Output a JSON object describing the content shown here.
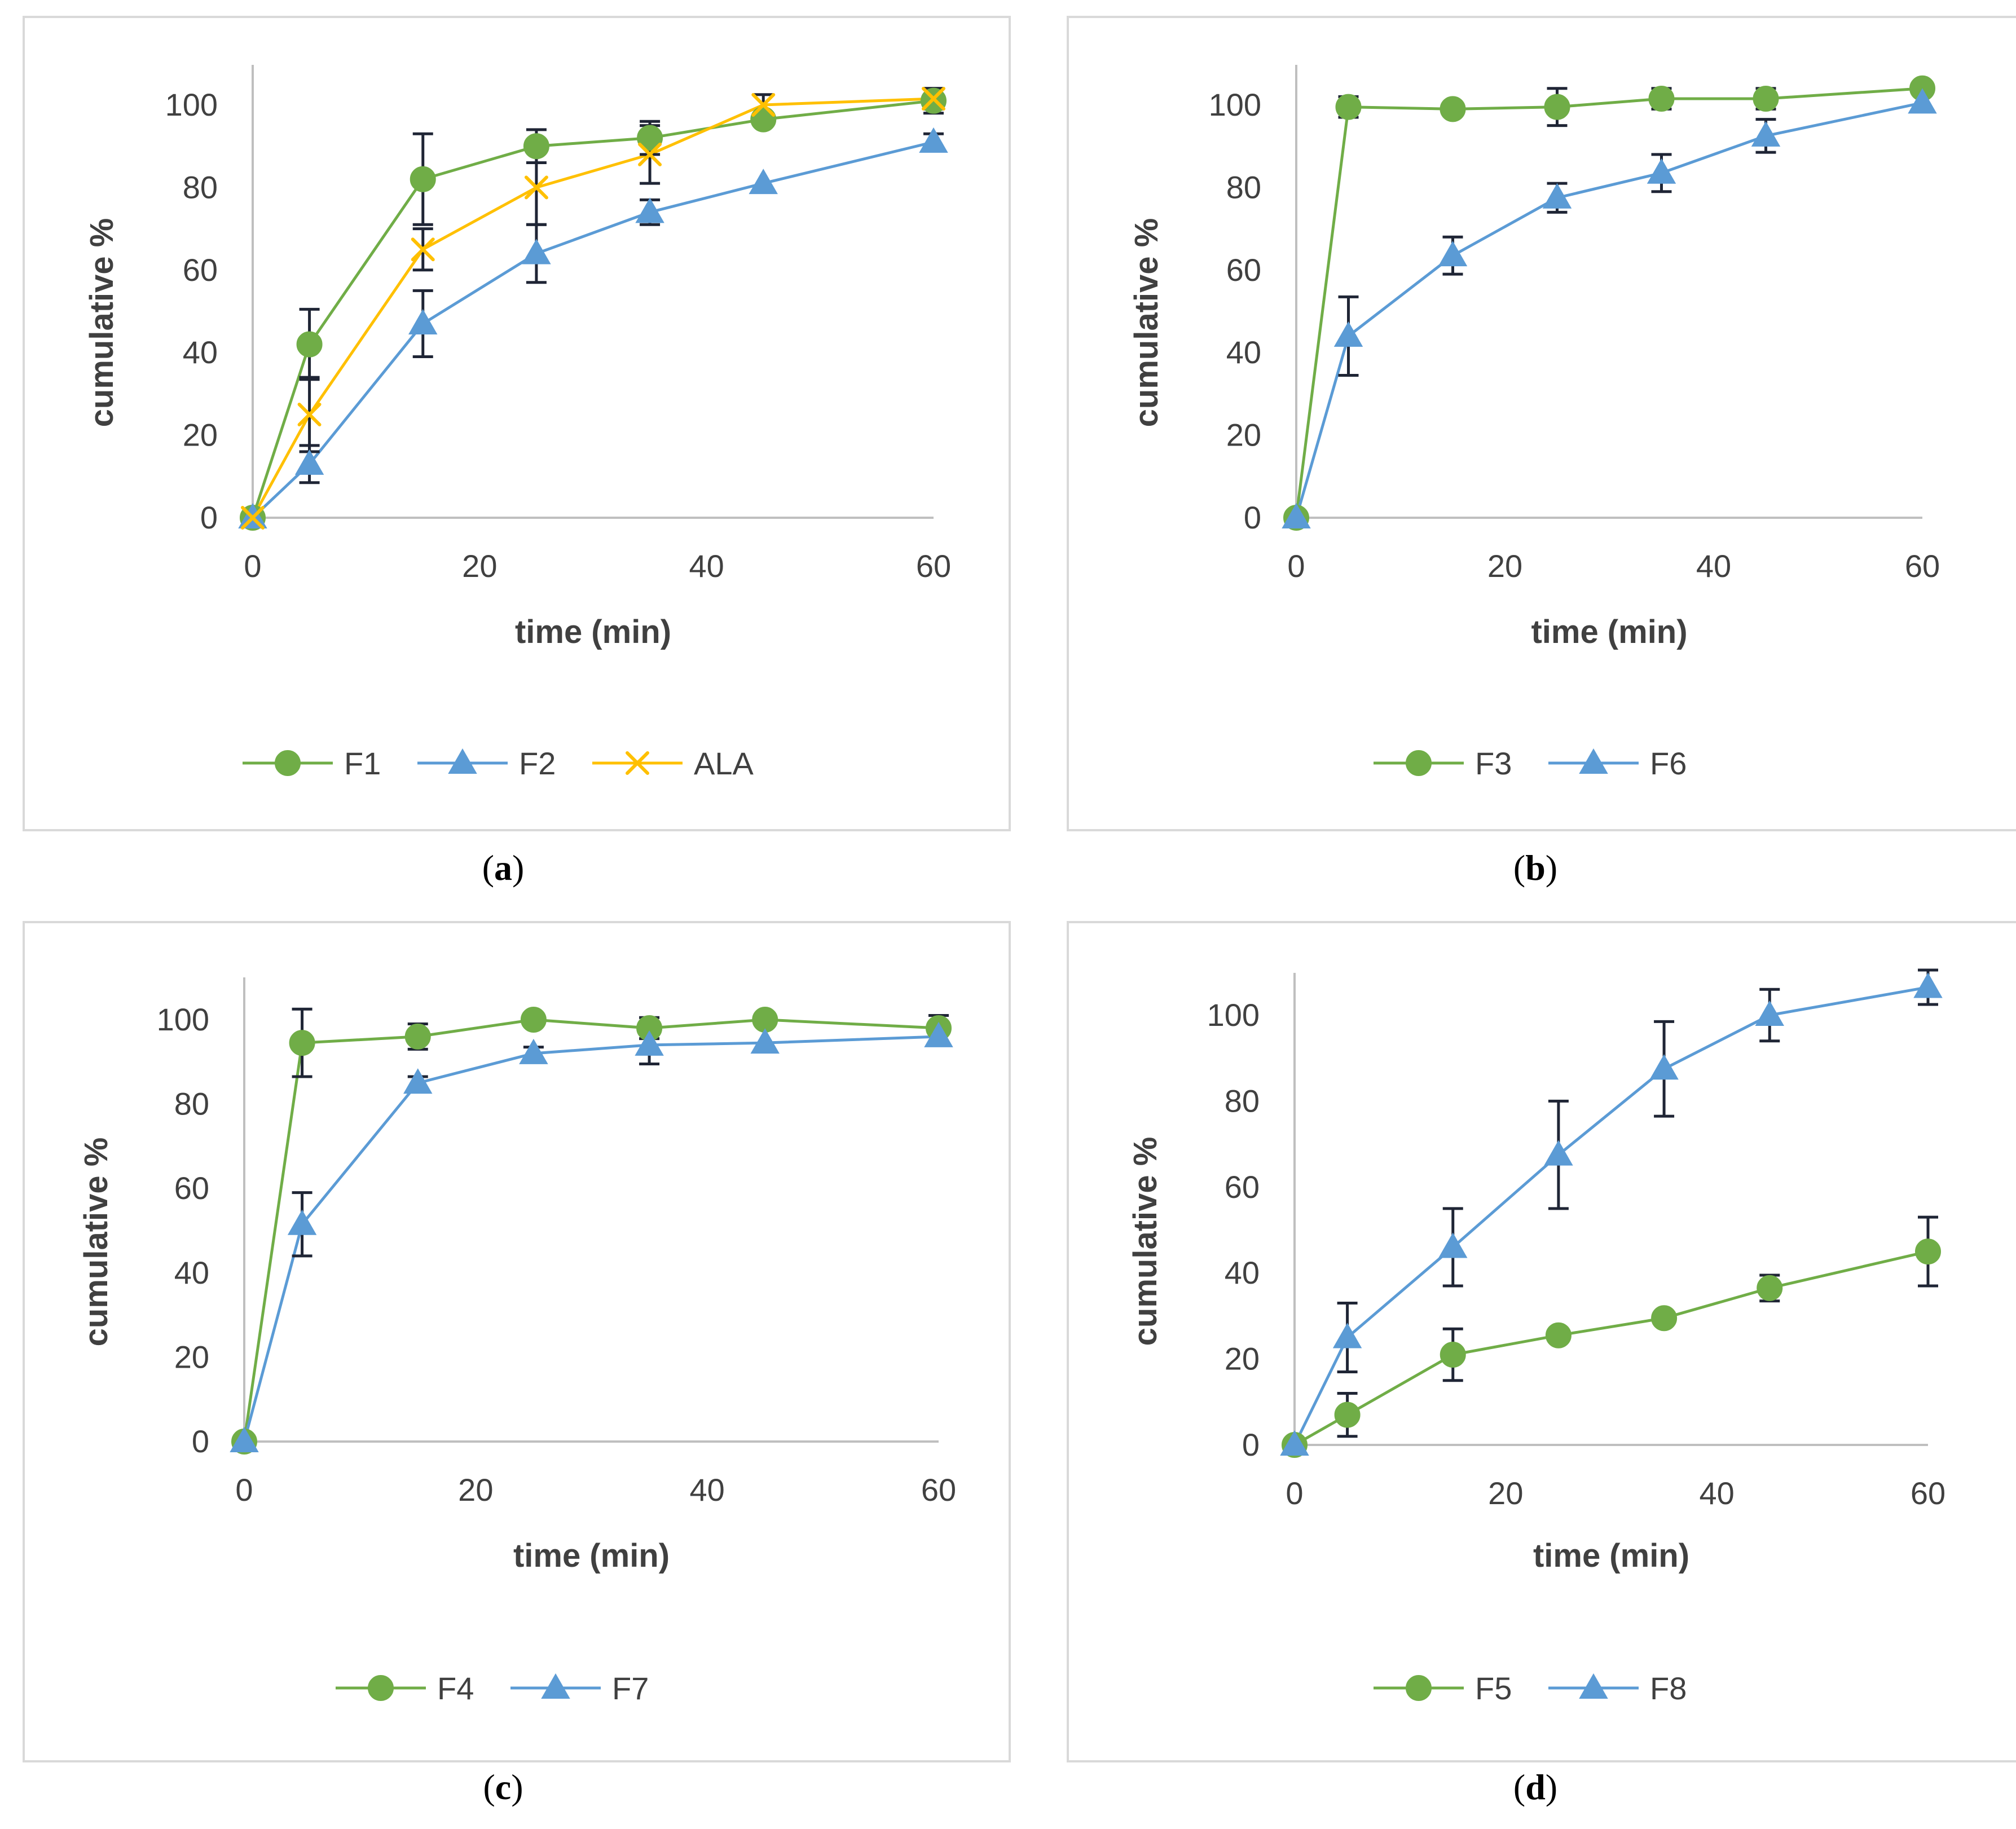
{
  "figure": {
    "colors": {
      "green": "#70AD47",
      "blue": "#5B9BD5",
      "yellow": "#FFC000",
      "axis": "#BFBFBF",
      "text": "#404040",
      "errorbar": "#1F2535",
      "border": "#D9D9D9"
    }
  },
  "chart_data": [
    {
      "panel": "a",
      "caption_letter": "a",
      "type": "line",
      "xlabel": "time (min)",
      "ylabel": "cumulative %",
      "xlim": [
        0,
        60
      ],
      "ylim": [
        0,
        110
      ],
      "xticks": [
        0,
        20,
        40,
        60
      ],
      "yticks": [
        0,
        20,
        40,
        60,
        80,
        100
      ],
      "x": [
        0,
        5,
        15,
        25,
        35,
        45,
        60
      ],
      "legend_position": "bottom",
      "series": [
        {
          "name": "F1",
          "marker": "circle",
          "color": "#70AD47",
          "values": [
            0,
            42,
            82,
            90,
            92,
            96.5,
            101
          ],
          "errors": [
            0,
            8.5,
            11,
            4,
            4,
            0,
            3
          ]
        },
        {
          "name": "F2",
          "marker": "triangle",
          "color": "#5B9BD5",
          "values": [
            0,
            13,
            47,
            64,
            74,
            81,
            91
          ],
          "errors": [
            0,
            4.5,
            8,
            7,
            3,
            0,
            2
          ]
        },
        {
          "name": "ALA",
          "marker": "x",
          "color": "#FFC000",
          "values": [
            0,
            25,
            65,
            80,
            88,
            100,
            101.5
          ],
          "errors": [
            0,
            9,
            5,
            9,
            7,
            2.5,
            2.5
          ]
        }
      ]
    },
    {
      "panel": "b",
      "caption_letter": "b",
      "type": "line",
      "xlabel": "time (min)",
      "ylabel": "cumulative %",
      "xlim": [
        0,
        60
      ],
      "ylim": [
        0,
        110
      ],
      "xticks": [
        0,
        20,
        40,
        60
      ],
      "yticks": [
        0,
        20,
        40,
        60,
        80,
        100
      ],
      "x": [
        0,
        5,
        15,
        25,
        35,
        45,
        60
      ],
      "legend_position": "bottom",
      "series": [
        {
          "name": "F3",
          "marker": "circle",
          "color": "#70AD47",
          "values": [
            0,
            99.5,
            99,
            99.5,
            101.5,
            101.5,
            104
          ],
          "errors": [
            0,
            2.5,
            0,
            4.5,
            2.5,
            2.5,
            0
          ]
        },
        {
          "name": "F6",
          "marker": "triangle",
          "color": "#5B9BD5",
          "values": [
            0,
            44,
            63.5,
            77.5,
            83.5,
            92.5,
            100.5
          ],
          "errors": [
            0,
            9.5,
            4.5,
            3.5,
            4.5,
            4,
            0
          ]
        }
      ]
    },
    {
      "panel": "c",
      "caption_letter": "c",
      "type": "line",
      "xlabel": "time (min)",
      "ylabel": "cumulative %",
      "xlim": [
        0,
        60
      ],
      "ylim": [
        0,
        110
      ],
      "xticks": [
        0,
        20,
        40,
        60
      ],
      "yticks": [
        0,
        20,
        40,
        60,
        80,
        100
      ],
      "x": [
        0,
        5,
        15,
        25,
        35,
        45,
        60
      ],
      "legend_position": "bottom",
      "series": [
        {
          "name": "F4",
          "marker": "circle",
          "color": "#70AD47",
          "values": [
            0,
            94.5,
            96,
            100,
            98,
            100,
            98
          ],
          "errors": [
            0,
            8,
            3,
            0,
            2.5,
            0,
            3
          ]
        },
        {
          "name": "F7",
          "marker": "triangle",
          "color": "#5B9BD5",
          "values": [
            0,
            51.5,
            85,
            92,
            94,
            94.5,
            96
          ],
          "errors": [
            0,
            7.5,
            1.5,
            1.5,
            4.5,
            0,
            0
          ]
        }
      ]
    },
    {
      "panel": "d",
      "caption_letter": "d",
      "type": "line",
      "xlabel": "time (min)",
      "ylabel": "cumulative %",
      "xlim": [
        0,
        60
      ],
      "ylim": [
        0,
        110
      ],
      "xticks": [
        0,
        20,
        40,
        60
      ],
      "yticks": [
        0,
        20,
        40,
        60,
        80,
        100
      ],
      "x": [
        0,
        5,
        15,
        25,
        35,
        45,
        60
      ],
      "legend_position": "bottom",
      "series": [
        {
          "name": "F5",
          "marker": "circle",
          "color": "#70AD47",
          "values": [
            0,
            7,
            21,
            25.5,
            29.5,
            36.5,
            45
          ],
          "errors": [
            0,
            5,
            6,
            0,
            0,
            3,
            8
          ]
        },
        {
          "name": "F8",
          "marker": "triangle",
          "color": "#5B9BD5",
          "values": [
            0,
            25,
            46,
            67.5,
            87.5,
            100,
            106.5
          ],
          "errors": [
            0,
            8,
            9,
            12.5,
            11,
            6,
            4
          ]
        }
      ]
    }
  ]
}
